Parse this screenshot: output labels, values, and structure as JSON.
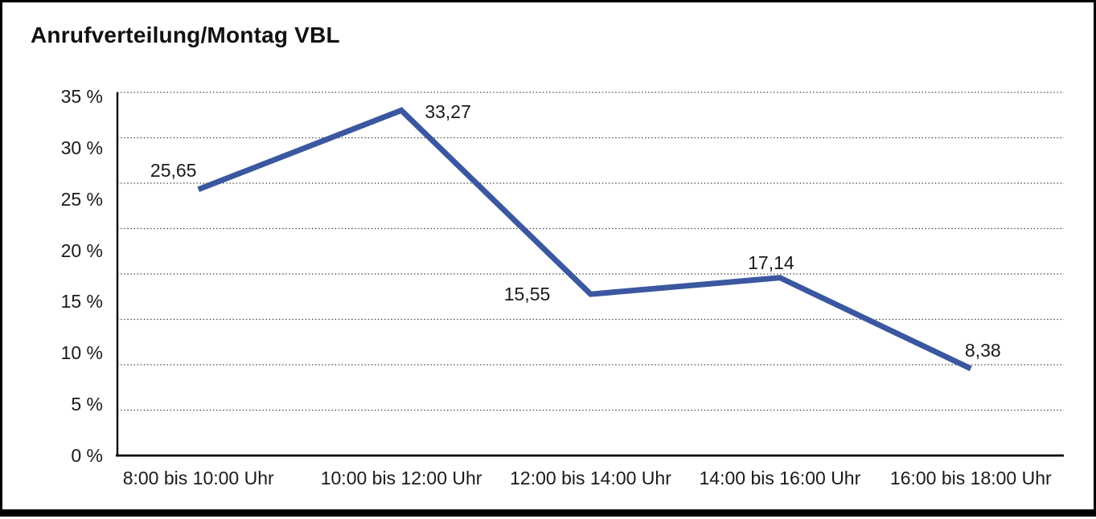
{
  "window": {
    "background": "#ffffff",
    "frame_border_color": "#000000"
  },
  "chart_data": {
    "type": "line",
    "title": "Anrufverteilung/Montag VBL",
    "categories": [
      "8:00 bis 10:00 Uhr",
      "10:00 bis 12:00 Uhr",
      "12:00 bis 14:00 Uhr",
      "14:00 bis 16:00 Uhr",
      "16:00 bis 18:00 Uhr"
    ],
    "values": [
      25.65,
      33.27,
      15.55,
      17.14,
      8.38
    ],
    "value_labels": [
      "25,65",
      "33,27",
      "15,55",
      "17,14",
      "8,38"
    ],
    "series_name": "Anrufverteilung Montag VBL",
    "unit": "%",
    "xlabel": "",
    "ylabel": "",
    "ylim": [
      0,
      35
    ],
    "y_ticks": [
      "0 %",
      "5 %",
      "10 %",
      "15 %",
      "20 %",
      "25 %",
      "30 %",
      "35 %"
    ],
    "grid": "horizontal-dotted",
    "legend_position": "none",
    "line_color": "#3A57A0",
    "grid_color": "#444444",
    "axis_color": "#000000",
    "text_color": "#1a1a1a"
  }
}
